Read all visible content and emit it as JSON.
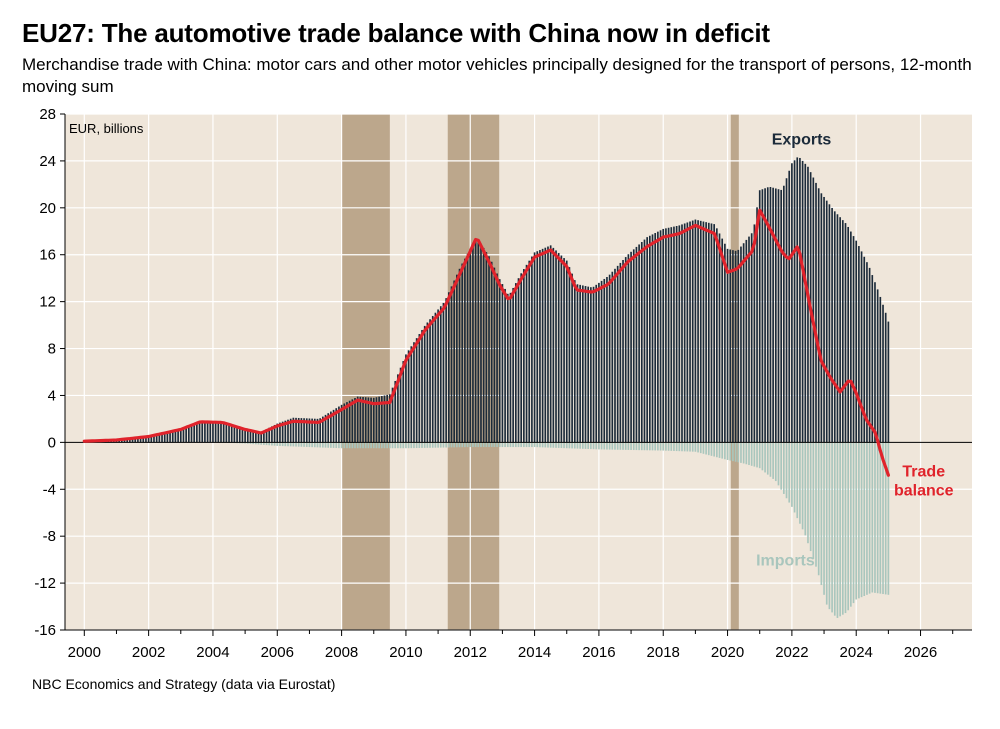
{
  "title": "EU27: The automotive trade balance with China now in deficit",
  "subtitle": "Merchandise trade with China: motor cars and other motor vehicles principally designed for the transport of persons, 12-month moving sum",
  "source": "NBC Economics and Strategy (data via Eurostat)",
  "chart_data": {
    "type": "bar",
    "unit_label": "EUR, billions",
    "ylim": [
      -16,
      28
    ],
    "yticks": [
      28,
      24,
      20,
      16,
      12,
      8,
      4,
      0,
      -4,
      -8,
      -12,
      -16
    ],
    "xlim": [
      1999.4,
      2027.6
    ],
    "xtick_labels": [
      "2000",
      "2002",
      "2004",
      "2006",
      "2008",
      "2010",
      "2012",
      "2014",
      "2016",
      "2018",
      "2020",
      "2022",
      "2024",
      "2026"
    ],
    "grid": true,
    "background": "#efe6da",
    "recession_shading": [
      [
        2008.0,
        2009.5
      ],
      [
        2011.3,
        2012.9
      ],
      [
        2020.1,
        2020.35
      ]
    ],
    "recession_color": "#bca78c",
    "annotations": {
      "exports": "Exports",
      "imports": "Imports",
      "balance": "Trade balance"
    },
    "series": [
      {
        "name": "Exports",
        "kind": "bar",
        "color": "#1c2b3a",
        "points": [
          [
            2000.0,
            0.1
          ],
          [
            2001.0,
            0.25
          ],
          [
            2002.0,
            0.6
          ],
          [
            2003.0,
            1.2
          ],
          [
            2003.6,
            1.85
          ],
          [
            2004.3,
            1.8
          ],
          [
            2005.0,
            1.2
          ],
          [
            2005.5,
            0.9
          ],
          [
            2006.0,
            1.6
          ],
          [
            2006.5,
            2.1
          ],
          [
            2007.3,
            2.0
          ],
          [
            2008.0,
            3.2
          ],
          [
            2008.5,
            3.9
          ],
          [
            2009.0,
            3.8
          ],
          [
            2009.5,
            4.1
          ],
          [
            2010.0,
            7.5
          ],
          [
            2010.6,
            10.0
          ],
          [
            2011.2,
            12.0
          ],
          [
            2011.7,
            15.0
          ],
          [
            2012.2,
            17.5
          ],
          [
            2012.6,
            15.8
          ],
          [
            2012.9,
            14.0
          ],
          [
            2013.2,
            12.5
          ],
          [
            2013.6,
            14.5
          ],
          [
            2014.0,
            16.2
          ],
          [
            2014.5,
            16.8
          ],
          [
            2015.0,
            15.5
          ],
          [
            2015.3,
            13.5
          ],
          [
            2015.8,
            13.2
          ],
          [
            2016.3,
            14.2
          ],
          [
            2016.9,
            16.0
          ],
          [
            2017.5,
            17.5
          ],
          [
            2018.0,
            18.2
          ],
          [
            2018.5,
            18.5
          ],
          [
            2019.0,
            19.0
          ],
          [
            2019.6,
            18.6
          ],
          [
            2020.0,
            16.5
          ],
          [
            2020.3,
            16.3
          ],
          [
            2020.8,
            18.0
          ],
          [
            2021.0,
            21.5
          ],
          [
            2021.3,
            21.8
          ],
          [
            2021.7,
            21.5
          ],
          [
            2022.0,
            23.8
          ],
          [
            2022.2,
            24.4
          ],
          [
            2022.5,
            23.5
          ],
          [
            2022.9,
            21.3
          ],
          [
            2023.3,
            19.8
          ],
          [
            2023.7,
            18.6
          ],
          [
            2024.0,
            17.2
          ],
          [
            2024.4,
            15.0
          ],
          [
            2024.7,
            12.8
          ],
          [
            2024.9,
            11.2
          ],
          [
            2025.0,
            10.3
          ]
        ]
      },
      {
        "name": "Imports",
        "kind": "bar",
        "color": "#a9c6bd",
        "points": [
          [
            2000.0,
            0.0
          ],
          [
            2002.0,
            0.0
          ],
          [
            2004.0,
            0.0
          ],
          [
            2005.0,
            -0.1
          ],
          [
            2006.0,
            -0.3
          ],
          [
            2007.0,
            -0.4
          ],
          [
            2008.0,
            -0.5
          ],
          [
            2010.0,
            -0.5
          ],
          [
            2012.0,
            -0.4
          ],
          [
            2014.0,
            -0.4
          ],
          [
            2016.0,
            -0.6
          ],
          [
            2018.0,
            -0.7
          ],
          [
            2019.0,
            -0.8
          ],
          [
            2020.0,
            -1.5
          ],
          [
            2020.5,
            -1.8
          ],
          [
            2021.0,
            -2.2
          ],
          [
            2021.5,
            -3.3
          ],
          [
            2022.0,
            -5.5
          ],
          [
            2022.4,
            -7.8
          ],
          [
            2022.8,
            -11.0
          ],
          [
            2023.1,
            -14.0
          ],
          [
            2023.4,
            -15.0
          ],
          [
            2023.7,
            -14.5
          ],
          [
            2024.0,
            -13.4
          ],
          [
            2024.5,
            -12.8
          ],
          [
            2025.0,
            -13.0
          ]
        ]
      },
      {
        "name": "Trade balance",
        "kind": "line",
        "color": "#e0232b",
        "points": [
          [
            2000.0,
            0.1
          ],
          [
            2001.0,
            0.2
          ],
          [
            2002.0,
            0.5
          ],
          [
            2003.0,
            1.1
          ],
          [
            2003.6,
            1.75
          ],
          [
            2004.3,
            1.7
          ],
          [
            2005.0,
            1.1
          ],
          [
            2005.5,
            0.8
          ],
          [
            2006.0,
            1.4
          ],
          [
            2006.5,
            1.8
          ],
          [
            2007.3,
            1.7
          ],
          [
            2008.0,
            2.8
          ],
          [
            2008.5,
            3.6
          ],
          [
            2009.0,
            3.3
          ],
          [
            2009.5,
            3.4
          ],
          [
            2010.0,
            7.0
          ],
          [
            2010.6,
            9.6
          ],
          [
            2011.2,
            11.5
          ],
          [
            2011.7,
            14.5
          ],
          [
            2012.2,
            17.5
          ],
          [
            2012.6,
            15.3
          ],
          [
            2012.9,
            13.5
          ],
          [
            2013.2,
            12.1
          ],
          [
            2013.6,
            14.0
          ],
          [
            2014.0,
            15.8
          ],
          [
            2014.5,
            16.4
          ],
          [
            2015.0,
            15.0
          ],
          [
            2015.3,
            13.0
          ],
          [
            2015.8,
            12.8
          ],
          [
            2016.3,
            13.5
          ],
          [
            2016.9,
            15.4
          ],
          [
            2017.5,
            16.7
          ],
          [
            2018.0,
            17.5
          ],
          [
            2018.5,
            17.8
          ],
          [
            2019.0,
            18.5
          ],
          [
            2019.6,
            17.8
          ],
          [
            2020.0,
            14.5
          ],
          [
            2020.3,
            14.8
          ],
          [
            2020.8,
            16.4
          ],
          [
            2021.0,
            19.8
          ],
          [
            2021.3,
            18.3
          ],
          [
            2021.7,
            16.2
          ],
          [
            2021.9,
            15.6
          ],
          [
            2022.2,
            16.8
          ],
          [
            2022.5,
            12.5
          ],
          [
            2022.9,
            7.0
          ],
          [
            2023.2,
            5.5
          ],
          [
            2023.5,
            4.3
          ],
          [
            2023.8,
            5.4
          ],
          [
            2024.0,
            4.2
          ],
          [
            2024.3,
            2.0
          ],
          [
            2024.6,
            0.8
          ],
          [
            2024.8,
            -1.2
          ],
          [
            2025.0,
            -2.8
          ]
        ]
      }
    ]
  }
}
